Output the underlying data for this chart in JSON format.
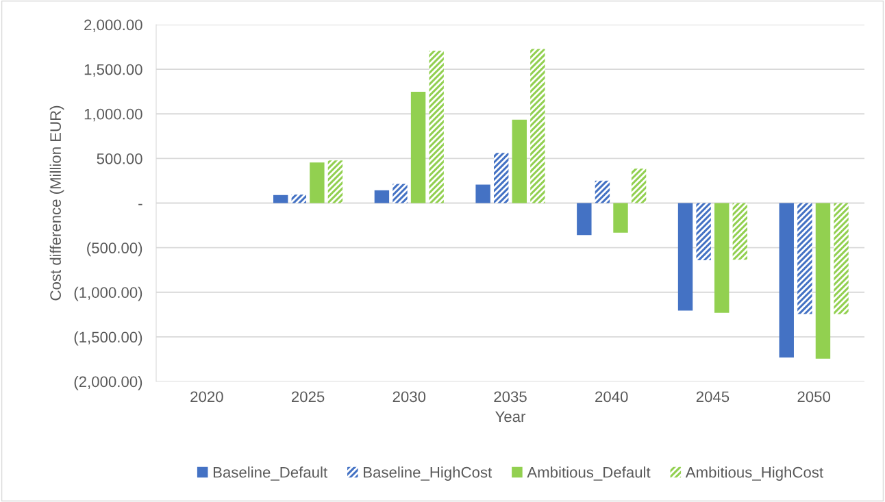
{
  "chart_data": {
    "type": "bar",
    "xlabel": "Year",
    "ylabel": "Cost difference (Million EUR)",
    "categories": [
      "2020",
      "2025",
      "2030",
      "2035",
      "2040",
      "2045",
      "2050"
    ],
    "series": [
      {
        "name": "Baseline_Default",
        "color": "#4472c4",
        "values": [
          0,
          90,
          143,
          207,
          -359,
          -1205,
          -1731
        ]
      },
      {
        "name": "Baseline_HighCost",
        "color": "#4472c4",
        "values": [
          0,
          95,
          215,
          562,
          251,
          -641,
          -1244
        ]
      },
      {
        "name": "Ambitious_Default",
        "color": "#92d050",
        "values": [
          0,
          455,
          1247,
          935,
          -333,
          -1231,
          -1744
        ]
      },
      {
        "name": "Ambitious_HighCost",
        "color": "#92d050",
        "values": [
          0,
          478,
          1709,
          1727,
          385,
          -636,
          -1246
        ]
      }
    ],
    "ylim": [
      -2000,
      2000
    ],
    "yticks": [
      {
        "value": -2000,
        "label": "(2,000.00)"
      },
      {
        "value": -1500,
        "label": "(1,500.00)"
      },
      {
        "value": -1000,
        "label": "(1,000.00)"
      },
      {
        "value": -500,
        "label": "(500.00)"
      },
      {
        "value": 0,
        "label": "-"
      },
      {
        "value": 500,
        "label": "500.00"
      },
      {
        "value": 1000,
        "label": "1,000.00"
      },
      {
        "value": 1500,
        "label": "1,500.00"
      },
      {
        "value": 2000,
        "label": "2,000.00"
      }
    ],
    "grid": "y",
    "legend": "bottom"
  }
}
